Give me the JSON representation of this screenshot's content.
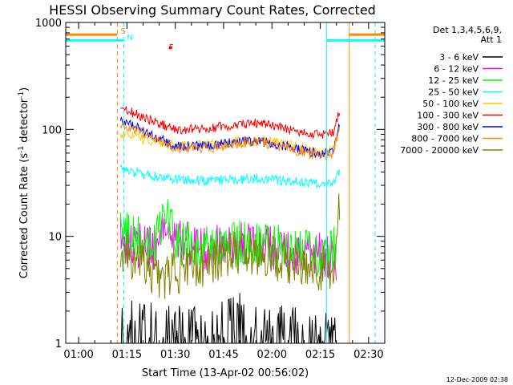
{
  "chart_data": {
    "type": "line",
    "title": "HESSI Observing Summary Count Rates, Corrected",
    "xlabel": "Start Time (13-Apr-02 00:56:02)",
    "ylabel": "Corrected Count Rate (s-1 detector-1)",
    "ylabel_parts": {
      "main": "Corrected Count Rate (s",
      "exp1": "-1",
      "mid": " detector",
      "exp2": "-1",
      "end": ")"
    },
    "xlim": [
      "00:56",
      "02:35"
    ],
    "ylim": [
      1,
      1000
    ],
    "yscale": "log",
    "x_ticks": [
      "01:00",
      "01:15",
      "01:30",
      "01:45",
      "02:00",
      "02:15",
      "02:30"
    ],
    "y_ticks": [
      {
        "value": 1,
        "label": "1"
      },
      {
        "value": 10,
        "label": "10"
      },
      {
        "value": 100,
        "label": "100"
      },
      {
        "value": 1000,
        "label": "1000"
      }
    ],
    "legend_position": "right",
    "legend_header": [
      "Det 1,3,4,5,6,9,",
      "Att 1"
    ],
    "series": [
      {
        "name": "3 - 6 keV",
        "color": "#000000",
        "x": [
          "01:13",
          "01:15",
          "01:20",
          "01:30",
          "01:40",
          "01:50",
          "02:00",
          "02:10",
          "02:20"
        ],
        "y": [
          2.8,
          1.6,
          1.5,
          1.6,
          1.5,
          1.8,
          1.5,
          1.4,
          1.2
        ]
      },
      {
        "name": "6 - 12 keV",
        "color": "#ff00ff",
        "x": [
          "01:13",
          "01:16",
          "01:20",
          "01:25",
          "01:27",
          "01:30",
          "01:40",
          "01:50",
          "02:00",
          "02:10",
          "02:16",
          "02:20"
        ],
        "y": [
          9.5,
          8.5,
          8,
          8,
          16,
          9,
          7.5,
          8.5,
          8,
          7,
          6.5,
          6
        ]
      },
      {
        "name": "12 - 25 keV",
        "color": "#00ff00",
        "x": [
          "01:13",
          "01:16",
          "01:20",
          "01:23",
          "01:27",
          "01:30",
          "01:40",
          "01:50",
          "02:00",
          "02:10",
          "02:16",
          "02:20"
        ],
        "y": [
          12,
          10,
          9,
          8.5,
          18,
          9,
          7.5,
          8.5,
          8,
          7,
          6.5,
          8
        ]
      },
      {
        "name": "25 - 50 keV",
        "color": "#00ffff",
        "x": [
          "01:13",
          "01:20",
          "01:30",
          "01:40",
          "01:50",
          "01:55",
          "02:00",
          "02:10",
          "02:15",
          "02:19",
          "02:21"
        ],
        "y": [
          43,
          38,
          34,
          33,
          34,
          35,
          34,
          32,
          31,
          32,
          40
        ]
      },
      {
        "name": "50 - 100 keV",
        "color": "#ffcc00",
        "x": [
          "01:13",
          "01:20",
          "01:30",
          "01:40",
          "01:50",
          "01:55",
          "02:00",
          "02:10",
          "02:15",
          "02:19",
          "02:21"
        ],
        "y": [
          90,
          80,
          70,
          72,
          78,
          80,
          77,
          68,
          62,
          65,
          95
        ]
      },
      {
        "name": "100 - 300 keV",
        "color": "#ff0000",
        "x": [
          "01:13",
          "01:20",
          "01:30",
          "01:40",
          "01:50",
          "01:55",
          "02:00",
          "02:10",
          "02:15",
          "02:19",
          "02:21"
        ],
        "y": [
          160,
          130,
          100,
          102,
          112,
          115,
          110,
          93,
          88,
          95,
          150
        ]
      },
      {
        "name": "300 - 800 keV",
        "color": "#0000ff",
        "x": [
          "01:13",
          "01:20",
          "01:30",
          "01:40",
          "01:50",
          "01:55",
          "02:00",
          "02:10",
          "02:15",
          "02:19",
          "02:21"
        ],
        "y": [
          125,
          97,
          70,
          70,
          77,
          78,
          74,
          64,
          58,
          62,
          115
        ]
      },
      {
        "name": "800 - 7000 keV",
        "color": "#ff8800",
        "x": [
          "01:13",
          "01:20",
          "01:30",
          "01:40",
          "01:50",
          "01:55",
          "02:00",
          "02:10",
          "02:15",
          "02:19",
          "02:21"
        ],
        "y": [
          115,
          92,
          66,
          66,
          74,
          76,
          72,
          61,
          55,
          60,
          110
        ]
      },
      {
        "name": "7000 - 20000 keV",
        "color": "#808000",
        "x": [
          "01:13",
          "01:16",
          "01:20",
          "01:25",
          "01:30",
          "01:40",
          "01:50",
          "02:00",
          "02:10",
          "02:15",
          "02:19",
          "02:21"
        ],
        "y": [
          8,
          6.5,
          6,
          4,
          4.5,
          5.5,
          7.5,
          6.5,
          5.5,
          5,
          5,
          20
        ]
      }
    ],
    "annotations": [
      {
        "label": "S",
        "color": "#ff8800",
        "x": "01:12"
      },
      {
        "label": "N",
        "color": "#00ffff",
        "x": "01:14"
      },
      {
        "label": "F",
        "color": "#ff0000",
        "x": "01:27"
      }
    ],
    "state_bars": [
      {
        "color": "#ff8800",
        "from": "00:56",
        "to": "01:12",
        "level": 770
      },
      {
        "color": "#00ffff",
        "from": "00:56",
        "to": "01:14",
        "level": 680
      },
      {
        "color": "#ff8800",
        "from": "02:24",
        "to": "02:35",
        "level": 770
      },
      {
        "color": "#00ffff",
        "from": "02:17",
        "to": "02:35",
        "level": 680
      },
      {
        "color": "#ff0000",
        "from": "01:28",
        "to": "01:29",
        "level": 580
      }
    ],
    "vertical_lines": [
      {
        "color": "#ff8800",
        "x": "01:12",
        "style": "dashed"
      },
      {
        "color": "#00ffff",
        "x": "01:14",
        "style": "dashed"
      },
      {
        "color": "#00ffff",
        "x": "02:17",
        "style": "solid"
      },
      {
        "color": "#ff8800",
        "x": "02:24",
        "style": "solid"
      },
      {
        "color": "#ff8800",
        "x": "02:32",
        "style": "dashed"
      },
      {
        "color": "#00ffff",
        "x": "02:32",
        "style": "dashed"
      }
    ],
    "footer_date": "12-Dec-2009 02:38",
    "grid": false
  }
}
